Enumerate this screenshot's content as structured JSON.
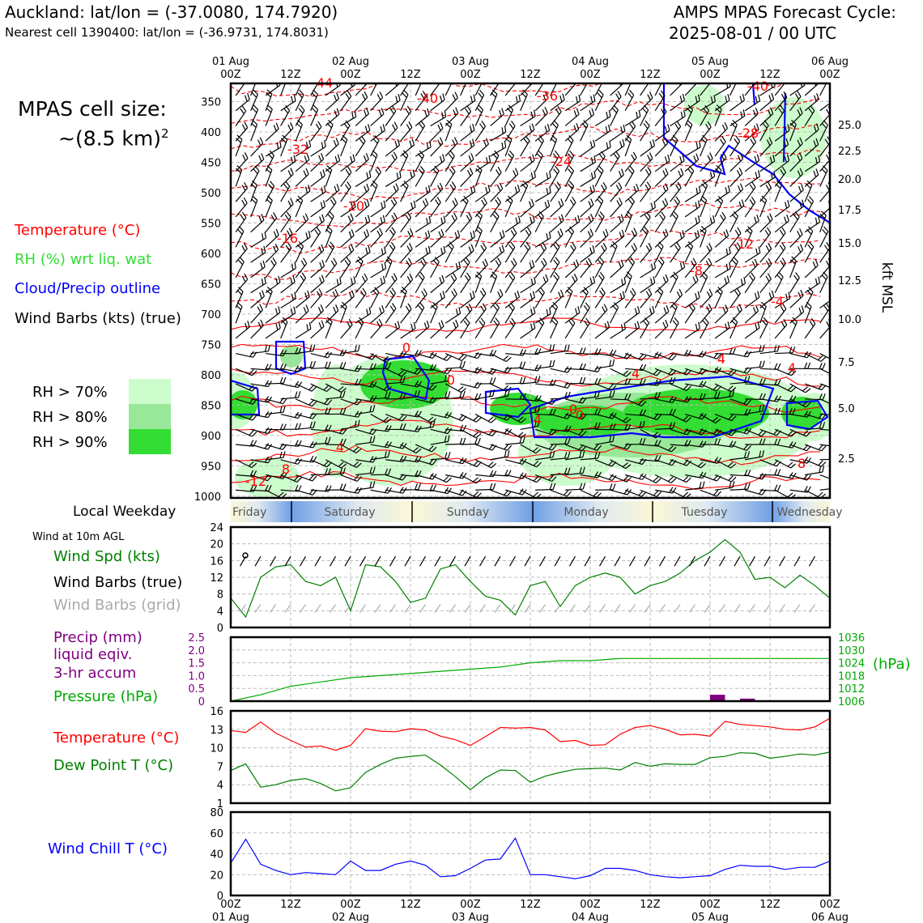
{
  "header": {
    "location": "Auckland: lat/lon = (-37.0080, 174.7920)",
    "nearest_cell": "Nearest cell 1390400: lat/lon = (-36.9731, 174.8031)",
    "cycle_line1": "AMPS MPAS Forecast Cycle:",
    "cycle_line2": "2025-08-01 / 00 UTC"
  },
  "cell_size": {
    "line1": "MPAS cell size:",
    "line2": "~(8.5 km)",
    "exp": "2"
  },
  "upper_legend": {
    "temperature": "Temperature (°C)",
    "rh": "RH (%) wrt liq. wat",
    "cloud": "Cloud/Precip outline",
    "wind": "Wind Barbs (kts) (true)",
    "rh70": "RH > 70%",
    "rh80": "RH > 80%",
    "rh90": "RH > 90%"
  },
  "colors": {
    "temperature": "#ff0000",
    "rh": "#33dd33",
    "cloud": "#0000ff",
    "rh70": "#ccfccc",
    "rh80": "#99e899",
    "rh90": "#33dd33",
    "pressure": "#00aa00",
    "precip": "#800080",
    "dewpoint": "#008000",
    "windchill": "#0000ff",
    "grid_barb": "#aaaaaa"
  },
  "time_axis": {
    "top_dates": [
      "01 Aug",
      "02 Aug",
      "03 Aug",
      "04 Aug",
      "05 Aug",
      "06 Aug"
    ],
    "tick_labels": [
      "00Z",
      "12Z",
      "00Z",
      "12Z",
      "00Z",
      "12Z",
      "00Z",
      "12Z",
      "00Z",
      "12Z",
      "00Z"
    ]
  },
  "weekday": {
    "label": "Local Weekday",
    "days": [
      "Friday",
      "Saturday",
      "Sunday",
      "Monday",
      "Tuesday",
      "Wednesday"
    ]
  },
  "wind_panel": {
    "subtitle": "Wind at 10m AGL",
    "speed": "Wind Spd (kts)",
    "barbs_true": "Wind Barbs (true)",
    "barbs_grid": "Wind Barbs (grid)"
  },
  "precip_panel": {
    "l1": "Precip (mm)",
    "l2": "liquid eqiv.",
    "l3": "3-hr accum",
    "pressure": "Pressure (hPa)",
    "unit": "(hPa)"
  },
  "temp_panel": {
    "temperature": "Temperature (°C)",
    "dewpoint": "Dew Point T (°C)"
  },
  "chill_panel": {
    "label": "Wind Chill T (°C)"
  },
  "chart_data": [
    {
      "type": "heatmap",
      "title": "",
      "y_left_label": "",
      "y_right_label": "kft MSL",
      "y_left_ticks": [
        "350",
        "400",
        "450",
        "500",
        "550",
        "600",
        "650",
        "700",
        "750",
        "800",
        "850",
        "900",
        "950",
        "1000"
      ],
      "y_right_ticks": [
        "25.0",
        "22.5",
        "20.0",
        "17.5",
        "15.0",
        "12.5",
        "10.0",
        "7.5",
        "5.0",
        "2.5"
      ],
      "temperature_contour_labels": [
        "-44",
        "-40",
        "-36",
        "-40",
        "-32",
        "-28",
        "-24",
        "-20",
        "-16",
        "-12",
        "-8",
        "-4",
        "0",
        "0",
        "0",
        "4",
        "4",
        "4",
        "4",
        "8",
        "8",
        "-12",
        "4",
        "0"
      ]
    },
    {
      "type": "line",
      "title": "",
      "x_hours": [
        0,
        3,
        6,
        9,
        12,
        15,
        18,
        21,
        24,
        27,
        30,
        33,
        36,
        39,
        42,
        45,
        48,
        51,
        54,
        57,
        60,
        63,
        66,
        69,
        72,
        75,
        78,
        81,
        84,
        87,
        90,
        93,
        96,
        99,
        102,
        105,
        108,
        111,
        114,
        117,
        120
      ],
      "series": [
        {
          "name": "Wind Spd (kts)",
          "values": [
            7,
            2.5,
            12,
            14.5,
            15,
            11,
            10,
            12,
            4,
            15,
            14.5,
            11,
            6,
            7,
            14,
            15,
            11,
            7.5,
            6.5,
            3,
            10,
            11,
            5,
            10,
            12,
            13,
            12,
            8,
            10,
            11,
            13,
            16,
            18,
            21,
            18,
            11.5,
            12,
            9.5,
            12.5,
            10,
            7
          ]
        }
      ],
      "ylim": [
        0,
        24
      ],
      "y_ticks": [
        "0",
        "4",
        "8",
        "12",
        "16",
        "20",
        "24"
      ]
    },
    {
      "type": "line",
      "title": "",
      "x_hours": [
        0,
        6,
        12,
        18,
        24,
        30,
        36,
        42,
        48,
        54,
        60,
        66,
        72,
        78,
        84,
        90,
        96,
        102,
        108,
        114,
        120
      ],
      "series": [
        {
          "name": "Pressure (hPa)",
          "values": [
            1006,
            1009,
            1013,
            1015,
            1017,
            1018,
            1019,
            1020,
            1021,
            1022,
            1024,
            1025,
            1025,
            1026,
            1026,
            1026,
            1026,
            1026,
            1026,
            1026,
            1026
          ]
        },
        {
          "name": "Precip (mm)",
          "values": [
            0,
            0,
            0,
            0,
            0,
            0,
            0,
            0,
            0,
            0,
            0,
            0,
            0,
            0,
            0,
            0,
            0.25,
            0.1,
            0,
            0,
            0
          ]
        }
      ],
      "y_left_ticks": [
        "0",
        "0.5",
        "1.0",
        "1.5",
        "2.0",
        "2.5"
      ],
      "y_right_ticks": [
        "1006",
        "1012",
        "1018",
        "1024",
        "1030",
        "1036"
      ]
    },
    {
      "type": "line",
      "title": "",
      "x_hours": [
        0,
        3,
        6,
        9,
        12,
        15,
        18,
        21,
        24,
        27,
        30,
        33,
        36,
        39,
        42,
        45,
        48,
        51,
        54,
        57,
        60,
        63,
        66,
        69,
        72,
        75,
        78,
        81,
        84,
        87,
        90,
        93,
        96,
        99,
        102,
        105,
        108,
        111,
        114,
        117,
        120
      ],
      "series": [
        {
          "name": "Temperature (°C)",
          "values": [
            12.8,
            12.5,
            14.2,
            12.4,
            11.2,
            10.1,
            10.3,
            9.6,
            10.4,
            13.1,
            12.7,
            12.6,
            13.1,
            12.9,
            11.9,
            11.3,
            10.4,
            11.8,
            13.3,
            13.2,
            13.3,
            12.9,
            11,
            11.2,
            10.4,
            10.5,
            12.2,
            13.3,
            13.6,
            13,
            12.1,
            12.2,
            11.9,
            14.3,
            13.8,
            13.6,
            13.4,
            13,
            12.9,
            13.4,
            14.8
          ]
        },
        {
          "name": "Dew Point T (°C)",
          "values": [
            6.3,
            7.4,
            3.6,
            4,
            4.7,
            5,
            4.2,
            3,
            3.5,
            6,
            7.3,
            8.3,
            8.6,
            8.8,
            7.2,
            5.3,
            3.2,
            5.1,
            6.4,
            6.3,
            4.4,
            5.4,
            6,
            6.5,
            6.6,
            6.7,
            6.4,
            7.6,
            7,
            7.4,
            7.3,
            7.3,
            8.4,
            8.6,
            9.2,
            9.1,
            8.3,
            8.6,
            9,
            8.8,
            9.3
          ]
        }
      ],
      "ylim": [
        1,
        16
      ],
      "y_ticks": [
        "1",
        "4",
        "7",
        "10",
        "13",
        "16"
      ]
    },
    {
      "type": "line",
      "title": "",
      "x_hours": [
        0,
        3,
        6,
        9,
        12,
        15,
        18,
        21,
        24,
        27,
        30,
        33,
        36,
        39,
        42,
        45,
        48,
        51,
        54,
        57,
        60,
        63,
        66,
        69,
        72,
        75,
        78,
        81,
        84,
        87,
        90,
        93,
        96,
        99,
        102,
        105,
        108,
        111,
        114,
        117,
        120
      ],
      "series": [
        {
          "name": "Wind Chill T (°C)",
          "values": [
            31,
            54,
            30,
            24,
            20,
            22,
            21,
            20,
            33,
            24,
            24,
            30,
            33,
            29,
            18,
            19,
            26,
            34,
            35,
            55,
            20,
            20,
            18,
            16,
            19,
            26,
            26,
            24,
            20,
            18,
            17,
            18,
            19,
            25,
            29,
            28,
            28,
            25,
            27,
            27,
            33
          ]
        }
      ],
      "ylim": [
        0,
        80
      ],
      "y_ticks": [
        "0",
        "20",
        "40",
        "60",
        "80"
      ]
    }
  ]
}
